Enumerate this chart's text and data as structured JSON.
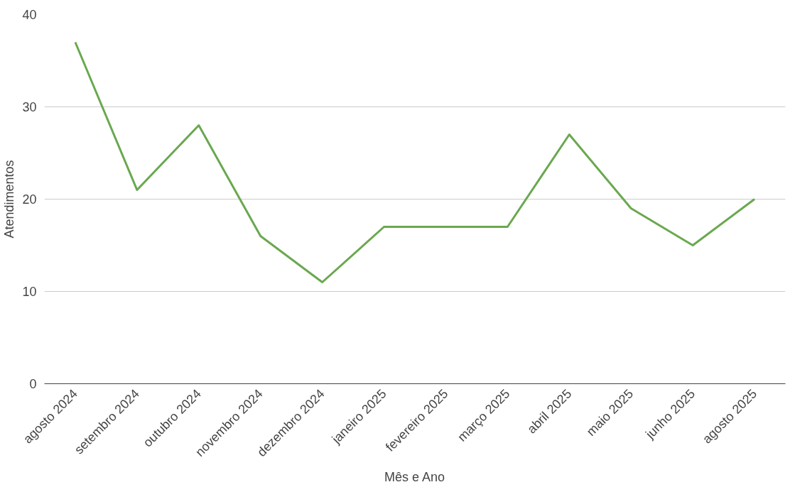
{
  "chart_data": {
    "type": "line",
    "xlabel": "Mês e Ano",
    "ylabel": "Atendimentos",
    "categories": [
      "agosto 2024",
      "setembro 2024",
      "outubro 2024",
      "novembro 2024",
      "dezembro 2024",
      "janeiro 2025",
      "fevereiro 2025",
      "março 2025",
      "abril 2025",
      "maio 2025",
      "junho 2025",
      "agosto 2025"
    ],
    "series": [
      {
        "color": "#6aa84f",
        "values": [
          37,
          21,
          28,
          16,
          11,
          17,
          17,
          17,
          27,
          19,
          15,
          20
        ]
      }
    ],
    "ylim": [
      0,
      40
    ],
    "yticks": [
      0,
      10,
      20,
      30,
      40
    ],
    "grid": "y",
    "marker": "none",
    "line_style": "solid"
  }
}
